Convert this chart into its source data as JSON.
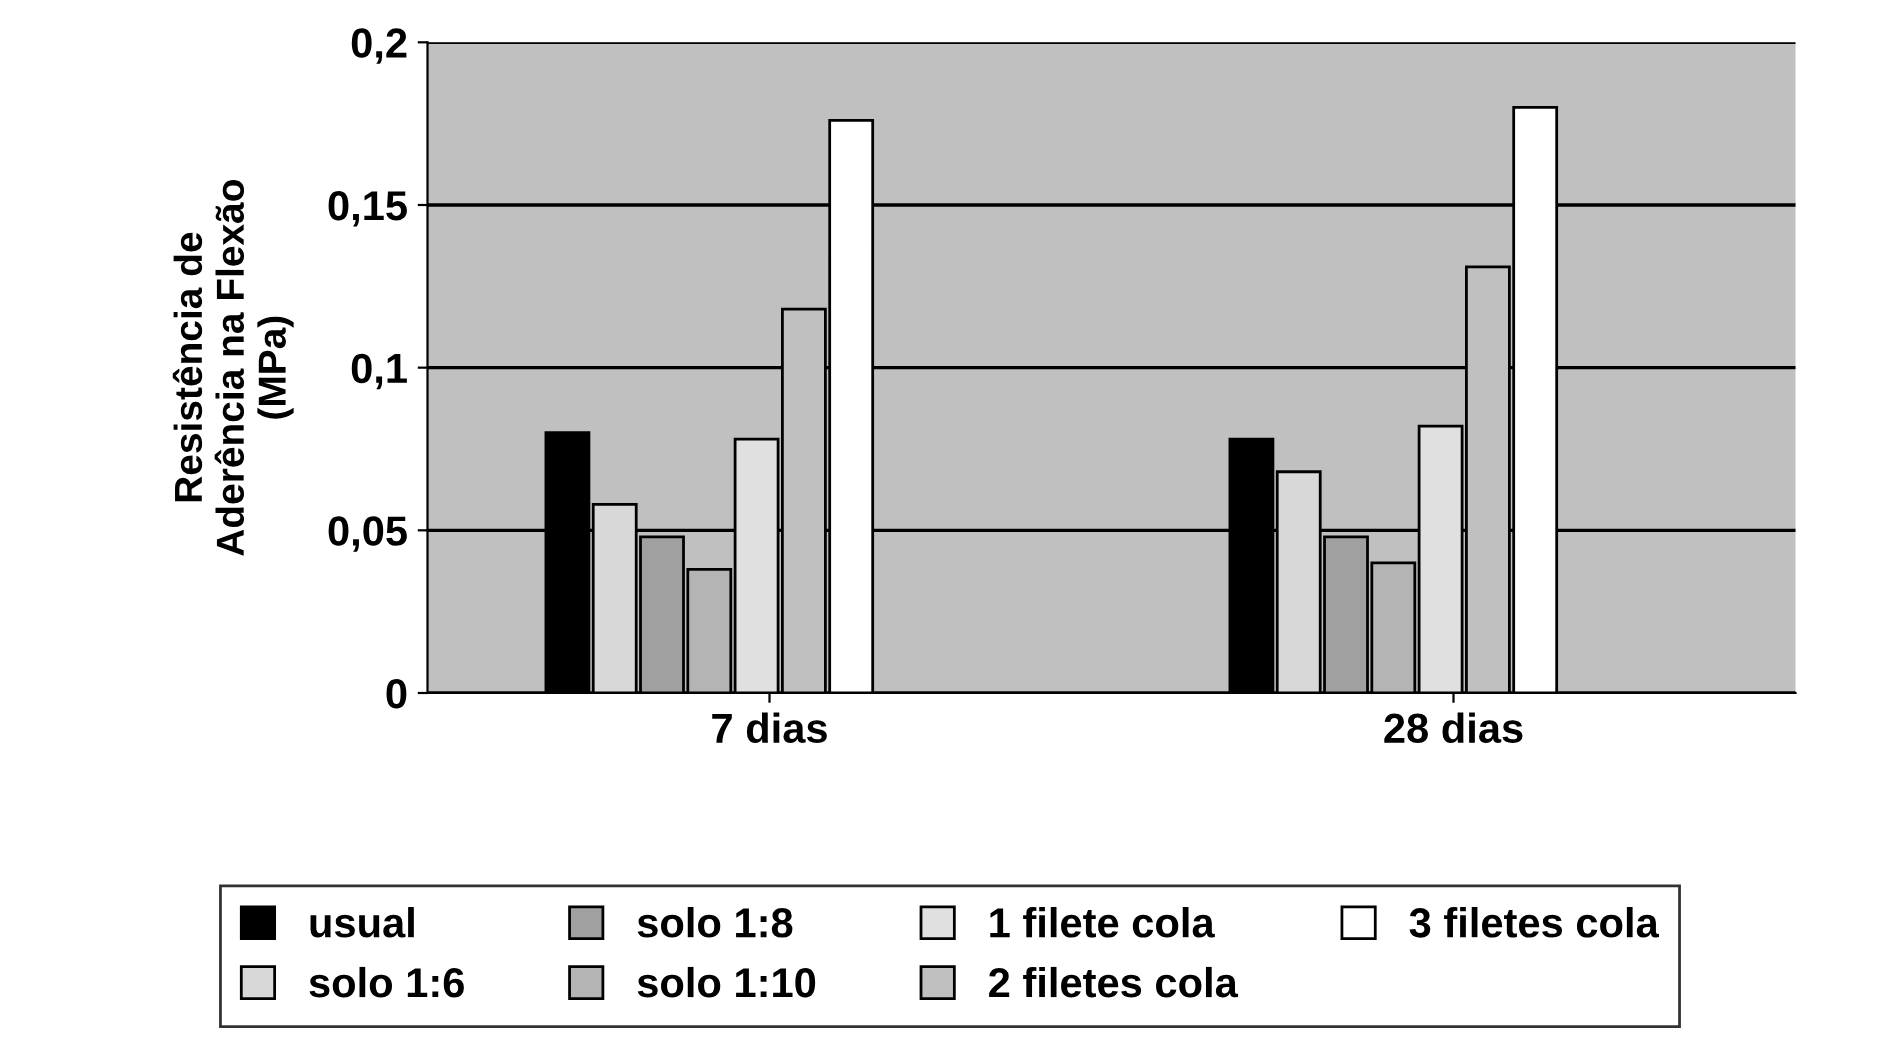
{
  "chart_data": {
    "type": "bar",
    "ylabel": "Resistência de\nAderência na Flexão\n(MPa)",
    "categories": [
      "7 dias",
      "28 dias"
    ],
    "series": [
      {
        "name": "usual",
        "color": "#000000",
        "values": [
          0.08,
          0.078
        ]
      },
      {
        "name": "solo 1:6",
        "color": "#d8d8d8",
        "values": [
          0.058,
          0.068
        ]
      },
      {
        "name": "solo 1:8",
        "color": "#a0a0a0",
        "values": [
          0.048,
          0.048
        ]
      },
      {
        "name": "solo 1:10",
        "color": "#b4b4b4",
        "values": [
          0.038,
          0.04
        ]
      },
      {
        "name": "1 filete cola",
        "color": "#e0e0e0",
        "values": [
          0.078,
          0.082
        ]
      },
      {
        "name": "2 filetes cola",
        "color": "#c0c0c0",
        "values": [
          0.118,
          0.131
        ]
      },
      {
        "name": "3 filetes cola",
        "color": "#ffffff",
        "values": [
          0.176,
          0.18
        ]
      }
    ],
    "ylim": [
      0,
      0.2
    ],
    "yticks": [
      0,
      {
        "value": 0.05,
        "label": "0,05"
      },
      {
        "value": 0.1,
        "label": "0,1"
      },
      {
        "value": 0.15,
        "label": "0,15"
      },
      {
        "value": 0.2,
        "label": "0,2"
      }
    ],
    "grid": "y",
    "legend": "bottom"
  }
}
